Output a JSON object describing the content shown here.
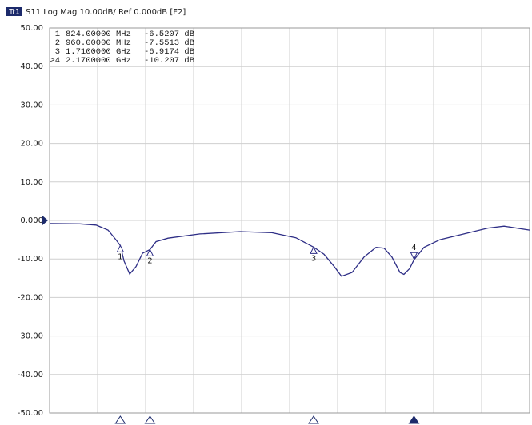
{
  "chart_data": {
    "type": "line",
    "trace_badge": "Tr1",
    "title": "S11 Log Mag 10.00dB/ Ref 0.000dB [F2]",
    "readout": [
      [
        "1",
        "824.00000 MHz",
        "-6.5207 dB"
      ],
      [
        "2",
        "960.00000 MHz",
        "-7.5513 dB"
      ],
      [
        "3",
        "1.7100000 GHz",
        "-6.9174 dB"
      ],
      [
        ">4",
        "2.1700000 GHz",
        "-10.207 dB"
      ]
    ],
    "x": [
      500,
      639,
      713,
      768,
      804,
      824,
      841,
      867,
      896,
      926,
      960,
      988,
      1043,
      1189,
      1373,
      1519,
      1629,
      1710,
      1758,
      1805,
      1838,
      1886,
      1941,
      1996,
      2033,
      2069,
      2106,
      2124,
      2150,
      2170,
      2216,
      2289,
      2399,
      2509,
      2583,
      2700
    ],
    "series": [
      {
        "color": "#2e2e86",
        "values": [
          -0.8,
          -0.9,
          -1.2,
          -2.5,
          -5,
          -6.52,
          -10.5,
          -13.9,
          -12,
          -8.5,
          -7.55,
          -5.5,
          -4.6,
          -3.5,
          -2.9,
          -3.2,
          -4.5,
          -6.92,
          -8.8,
          -12,
          -14.5,
          -13.5,
          -9.5,
          -7,
          -7.2,
          -9.5,
          -13.5,
          -14,
          -12.5,
          -10.21,
          -7,
          -5,
          -3.5,
          -2,
          -1.5,
          -2.5
        ]
      }
    ],
    "markers": [
      {
        "label": "1",
        "x": 824,
        "value": -6.5207
      },
      {
        "label": "2",
        "x": 960,
        "value": -7.5513
      },
      {
        "label": "3",
        "x": 1710,
        "value": -6.9174
      },
      {
        "label": "4",
        "x": 2170,
        "value": -10.207
      }
    ],
    "active_marker": 3,
    "ref": 0,
    "xlim": [
      500,
      2700
    ],
    "xticks": [
      500,
      720,
      940,
      1160,
      1380,
      1600,
      1820,
      2040,
      2260,
      2480,
      2700
    ],
    "ylim": [
      -50,
      50
    ],
    "yticks": [
      {
        "value": 50,
        "label": "50.00"
      },
      {
        "value": 40,
        "label": "40.00"
      },
      {
        "value": 30,
        "label": "30.00"
      },
      {
        "value": 20,
        "label": "20.00"
      },
      {
        "value": 10,
        "label": "10.00"
      },
      {
        "value": 0,
        "label": "0.000"
      },
      {
        "value": -10,
        "label": "-10.00"
      },
      {
        "value": -20,
        "label": "-20.00"
      },
      {
        "value": -30,
        "label": "-30.00"
      },
      {
        "value": -40,
        "label": "-40.00"
      },
      {
        "value": -50,
        "label": "-50.00"
      }
    ],
    "grid": true
  }
}
